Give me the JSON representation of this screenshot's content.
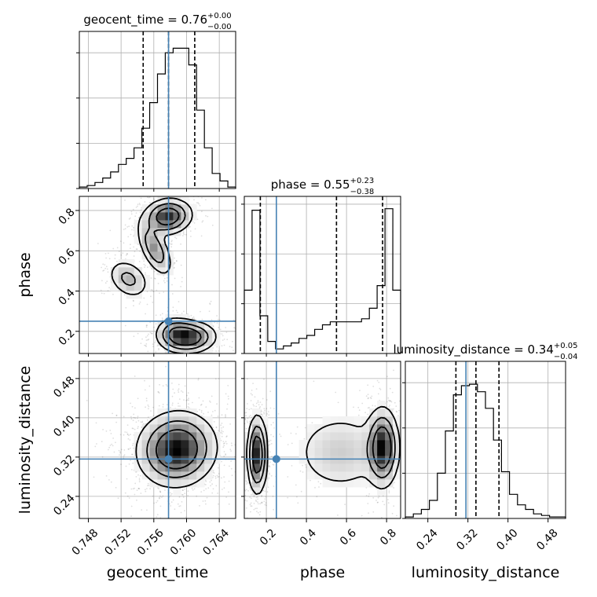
{
  "chart_data": {
    "type": "corner",
    "parameters": [
      "geocent_time",
      "phase",
      "luminosity_distance"
    ],
    "truth": {
      "geocent_time": 0.7578,
      "phase": 0.25,
      "luminosity_distance": 0.316
    },
    "axis_labels": [
      "geocent_time",
      "phase",
      "luminosity_distance"
    ],
    "ranges": {
      "geocent_time": [
        0.7469,
        0.766
      ],
      "phase": [
        0.09,
        0.87
      ],
      "luminosity_distance": [
        0.195,
        0.515
      ]
    },
    "ticks": {
      "geocent_time": {
        "values": [
          0.748,
          0.752,
          0.756,
          0.76,
          0.764
        ],
        "labels": [
          "0.748",
          "0.752",
          "0.756",
          "0.760",
          "0.764"
        ]
      },
      "phase": {
        "values": [
          0.2,
          0.4,
          0.6,
          0.8
        ],
        "labels": [
          "0.2",
          "0.4",
          "0.6",
          "0.8"
        ]
      },
      "luminosity_distance": {
        "values": [
          0.24,
          0.32,
          0.4,
          0.48
        ],
        "labels": [
          "0.24",
          "0.32",
          "0.40",
          "0.48"
        ]
      }
    },
    "marginals": [
      {
        "param": "geocent_time",
        "title_main": "geocent_time = 0.76",
        "title_sup": "+0.00",
        "title_sub": "−0.00",
        "quantiles": [
          0.7547,
          0.7578,
          0.761
        ],
        "counts": [
          1,
          2,
          4,
          7,
          11,
          16,
          20,
          27,
          40,
          57,
          76,
          90,
          93,
          93,
          82,
          52,
          27,
          10,
          5,
          1
        ],
        "ymax": 100,
        "ytick_values": [
          0,
          30,
          60,
          90
        ]
      },
      {
        "param": "phase",
        "title_main": "phase = 0.55",
        "title_sup": "+0.23",
        "title_sub": "−0.38",
        "quantiles": [
          0.17,
          0.55,
          0.78
        ],
        "counts": [
          42,
          95,
          25,
          8,
          3,
          5,
          7,
          10,
          12,
          16,
          19,
          21,
          21,
          21,
          21,
          23,
          30,
          45,
          96,
          42
        ],
        "ymax": 100,
        "ytick_values": [
          0,
          33,
          66,
          99
        ]
      },
      {
        "param": "luminosity_distance",
        "title_main": "luminosity_distance = 0.34",
        "title_sup": "+0.05",
        "title_sub": "−0.04",
        "quantiles": [
          0.296,
          0.336,
          0.382
        ],
        "counts": [
          1,
          3,
          6,
          12,
          30,
          58,
          82,
          88,
          89,
          84,
          73,
          52,
          31,
          16,
          9,
          6,
          3,
          2,
          1,
          1
        ],
        "ymax": 100,
        "ytick_values": [
          0,
          30,
          60,
          90
        ]
      }
    ],
    "density_panels": [
      {
        "x_param": "geocent_time",
        "y_param": "phase",
        "blobs": [
          {
            "cx": 0.7577,
            "cy": 0.77,
            "sx": 0.0015,
            "sy": 0.045,
            "w": 1.0,
            "rho": 0.1
          },
          {
            "cx": 0.7561,
            "cy": 0.61,
            "sx": 0.0011,
            "sy": 0.07,
            "w": 0.6,
            "rho": -0.6
          },
          {
            "cx": 0.7529,
            "cy": 0.46,
            "sx": 0.0013,
            "sy": 0.05,
            "w": 0.45,
            "rho": -0.3
          },
          {
            "cx": 0.7602,
            "cy": 0.17,
            "sx": 0.0017,
            "sy": 0.04,
            "w": 1.0,
            "rho": 0.05
          },
          {
            "cx": 0.7585,
            "cy": 0.2,
            "sx": 0.0012,
            "sy": 0.04,
            "w": 0.4,
            "rho": 0.0
          }
        ]
      },
      {
        "x_param": "geocent_time",
        "y_param": "luminosity_distance",
        "blobs": [
          {
            "cx": 0.7588,
            "cy": 0.336,
            "sx": 0.0024,
            "sy": 0.038,
            "w": 1.0,
            "rho": 0.05
          }
        ]
      },
      {
        "x_param": "phase",
        "y_param": "luminosity_distance",
        "blobs": [
          {
            "cx": 0.155,
            "cy": 0.325,
            "sx": 0.025,
            "sy": 0.04,
            "w": 1.0,
            "rho": 0.0
          },
          {
            "cx": 0.78,
            "cy": 0.34,
            "sx": 0.04,
            "sy": 0.04,
            "w": 1.0,
            "rho": 0.0
          },
          {
            "cx": 0.57,
            "cy": 0.33,
            "sx": 0.13,
            "sy": 0.045,
            "w": 0.3,
            "rho": 0.0
          }
        ]
      }
    ]
  }
}
